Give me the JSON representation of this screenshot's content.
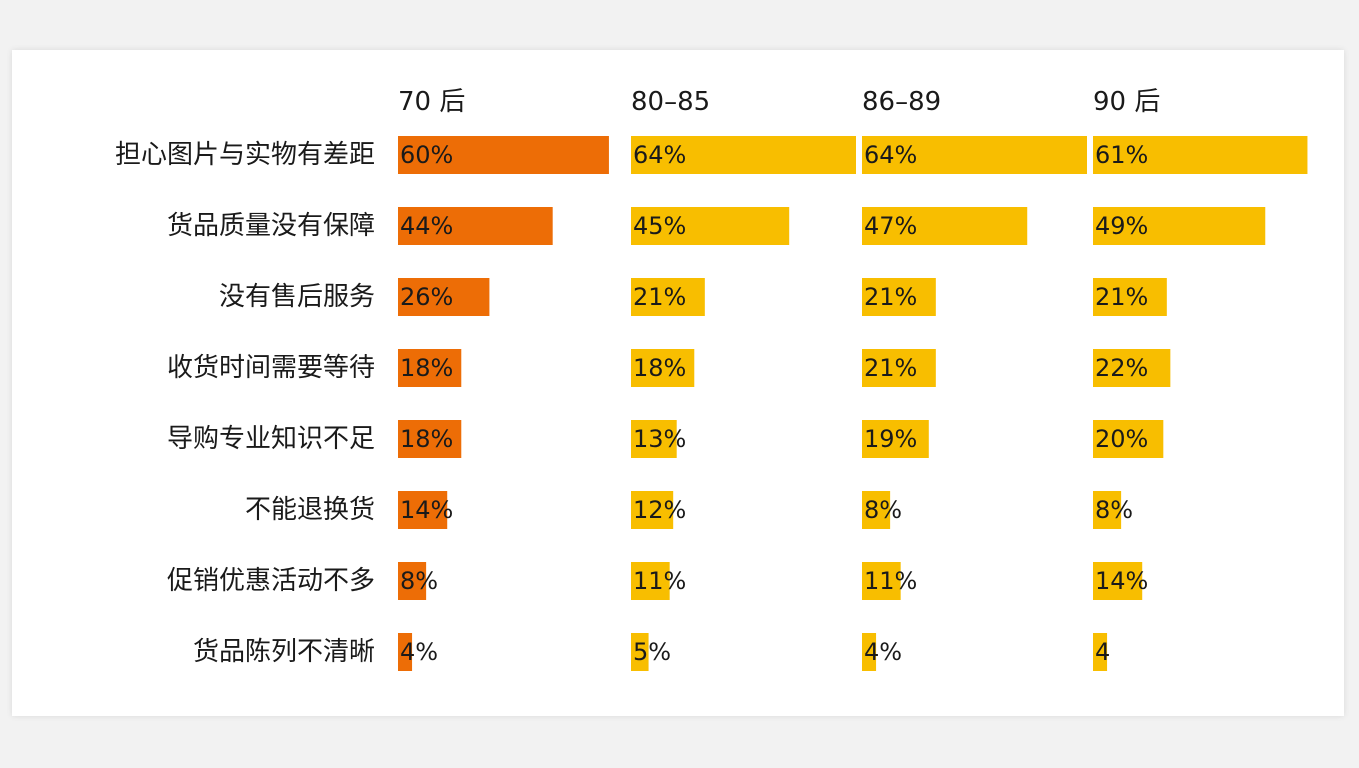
{
  "chart_data": {
    "type": "bar",
    "orientation": "horizontal",
    "categories": [
      "担心图片与实物有差距",
      "货品质量没有保障",
      "没有售后服务",
      "收货时间需要等待",
      "导购专业知识不足",
      "不能退换货",
      "促销优惠活动不多",
      "货品陈列不清晰"
    ],
    "series": [
      {
        "name": "70 后",
        "values": [
          60,
          44,
          26,
          18,
          18,
          14,
          8,
          4
        ],
        "labels": [
          "60%",
          "44%",
          "26%",
          "18%",
          "18%",
          "14%",
          "8%",
          "4%"
        ]
      },
      {
        "name": "80–85",
        "values": [
          64,
          45,
          21,
          18,
          13,
          12,
          11,
          5
        ],
        "labels": [
          "64%",
          "45%",
          "21%",
          "18%",
          "13%",
          "12%",
          "11%",
          "5%"
        ]
      },
      {
        "name": "86–89",
        "values": [
          64,
          47,
          21,
          21,
          19,
          8,
          11,
          4
        ],
        "labels": [
          "64%",
          "47%",
          "21%",
          "21%",
          "19%",
          "8%",
          "11%",
          "4%"
        ]
      },
      {
        "name": "90 后",
        "values": [
          61,
          49,
          21,
          22,
          20,
          8,
          14,
          4
        ],
        "labels": [
          "61%",
          "49%",
          "21%",
          "22%",
          "20%",
          "8%",
          "14%",
          "4"
        ]
      }
    ],
    "colors": {
      "highlight": "#ED6D06",
      "default": "#F8BE00"
    },
    "title": "",
    "xlabel": "",
    "ylabel": "",
    "xlim": [
      0,
      64
    ],
    "grid": false,
    "legend": "none"
  }
}
